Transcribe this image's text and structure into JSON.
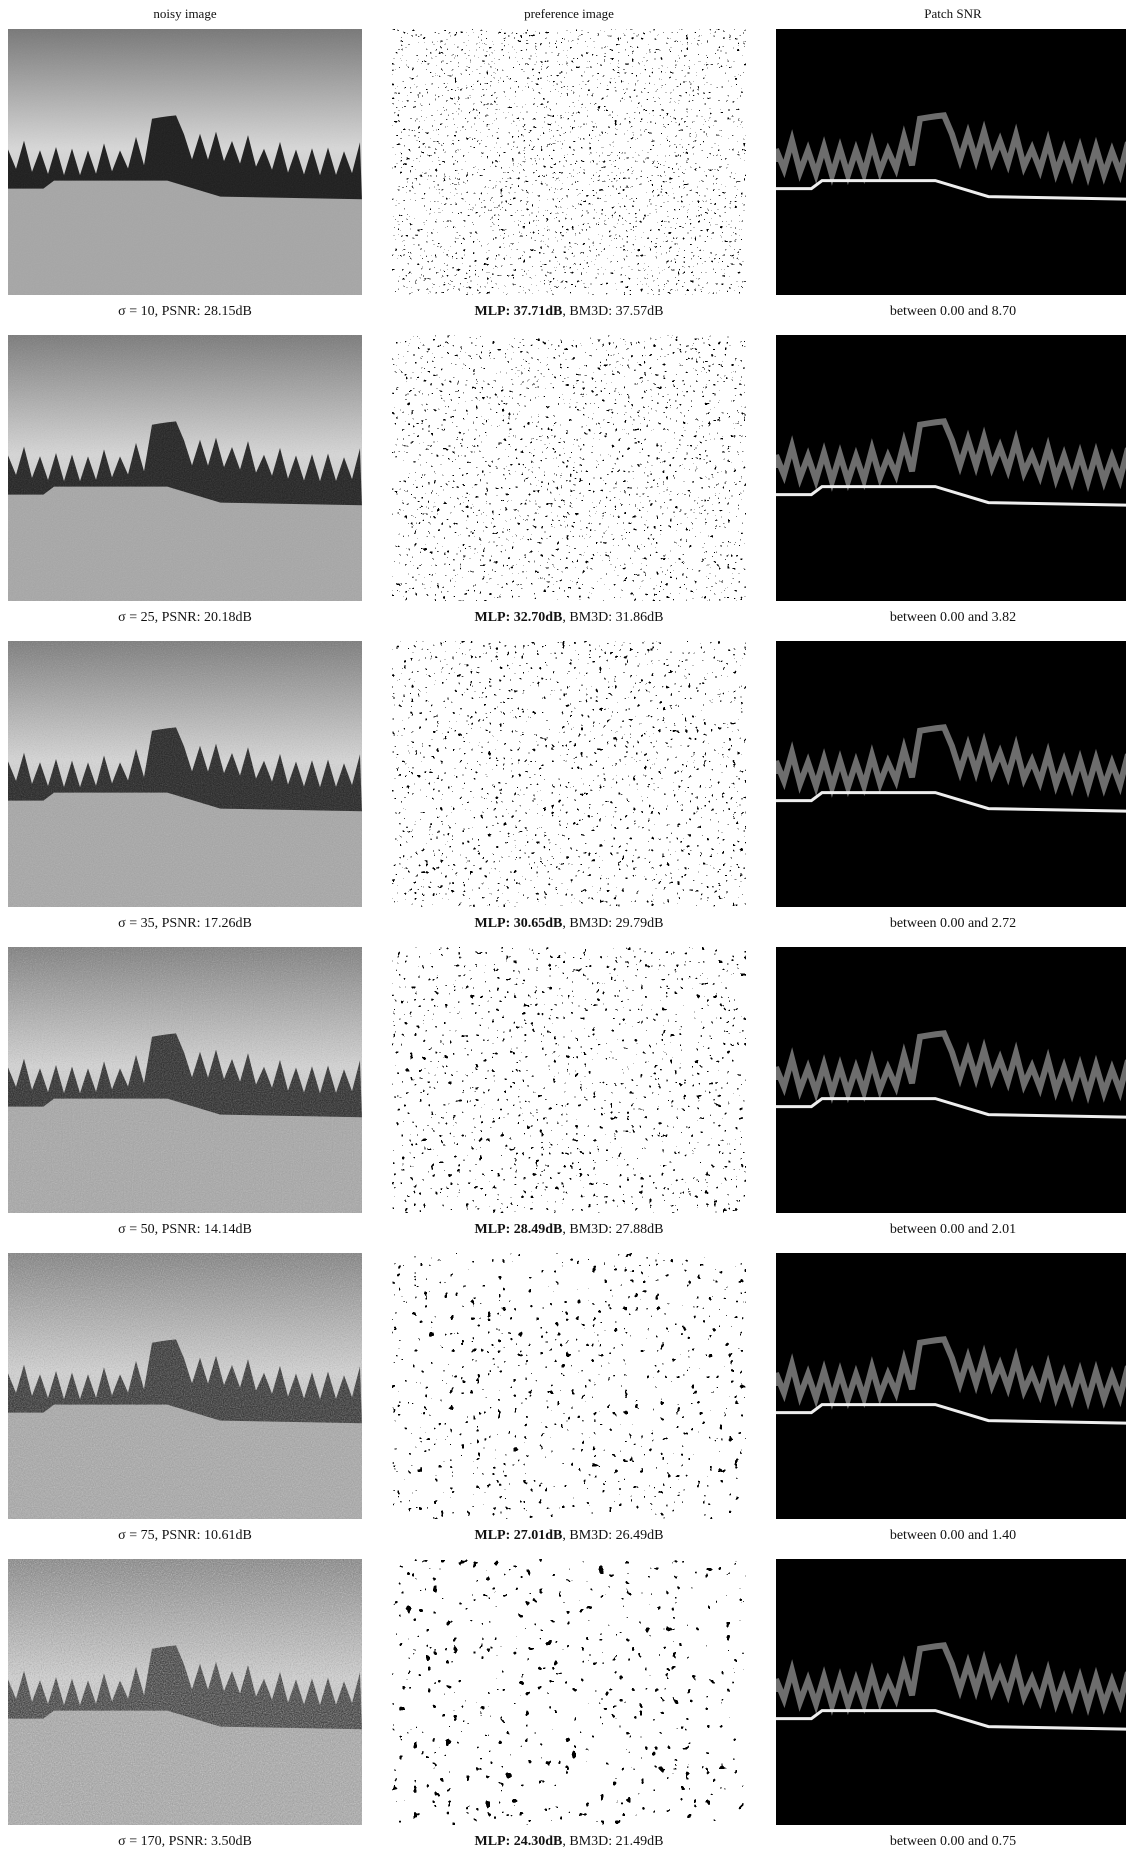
{
  "headers": [
    "noisy image",
    "preference image",
    "Patch SNR"
  ],
  "rows": [
    {
      "noisy_caption": "σ = 10, PSNR: 28.15dB",
      "mlp": "MLP: 37.71dB",
      "bm3d": ", BM3D: 37.57dB",
      "snr_caption": "between 0.00 and 8.70"
    },
    {
      "noisy_caption": "σ = 25, PSNR: 20.18dB",
      "mlp": "MLP: 32.70dB",
      "bm3d": ", BM3D: 31.86dB",
      "snr_caption": "between 0.00 and 3.82"
    },
    {
      "noisy_caption": "σ = 35, PSNR: 17.26dB",
      "mlp": "MLP: 30.65dB",
      "bm3d": ", BM3D: 29.79dB",
      "snr_caption": "between 0.00 and 2.72"
    },
    {
      "noisy_caption": "σ = 50, PSNR: 14.14dB",
      "mlp": "MLP: 28.49dB",
      "bm3d": ", BM3D: 27.88dB",
      "snr_caption": "between 0.00 and 2.01"
    },
    {
      "noisy_caption": "σ = 75, PSNR: 10.61dB",
      "mlp": "MLP: 27.01dB",
      "bm3d": ", BM3D: 26.49dB",
      "snr_caption": "between 0.00 and 1.40"
    },
    {
      "noisy_caption": "σ = 170, PSNR: 3.50dB",
      "mlp": "MLP: 24.30dB",
      "bm3d": ", BM3D: 21.49dB",
      "snr_caption": "between 0.00 and 0.75"
    }
  ]
}
